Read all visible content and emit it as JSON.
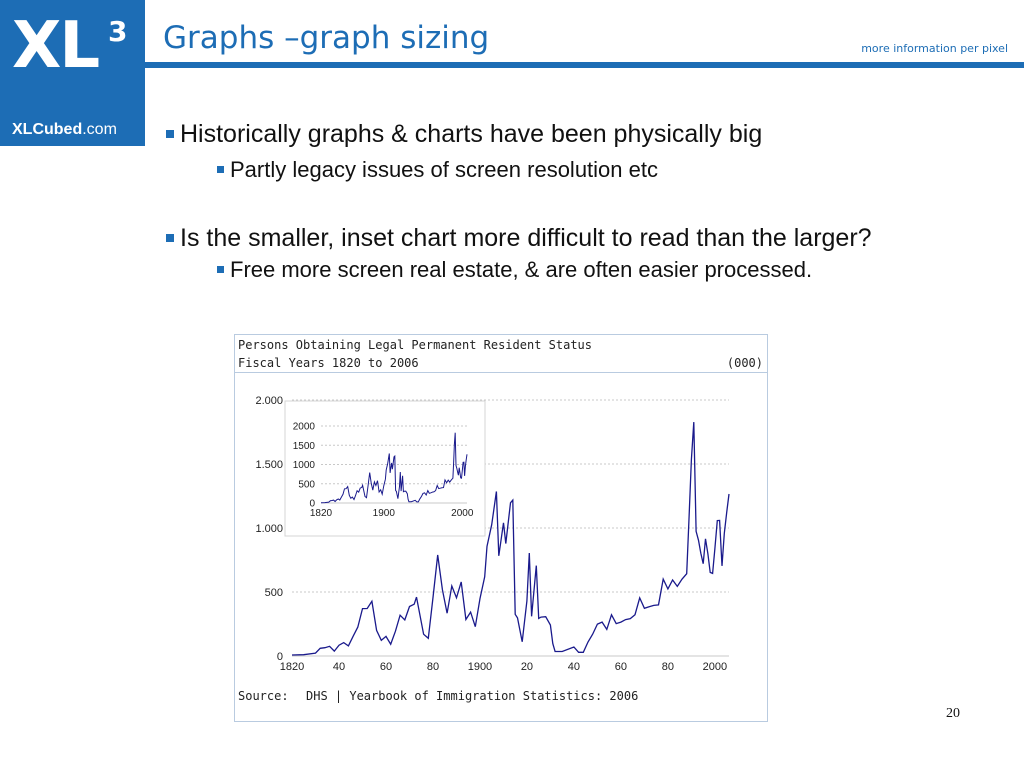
{
  "header": {
    "logo_main": "XL",
    "logo_sup": "3",
    "logo_url_bold": "XLCubed",
    "logo_url_rest": ".com",
    "title": "Graphs –graph sizing",
    "tagline": "more information per pixel"
  },
  "bullets": [
    {
      "level": 1,
      "text": "Historically graphs & charts have been physically big"
    },
    {
      "level": 2,
      "text": "Partly legacy issues of screen resolution etc"
    },
    {
      "level": 1,
      "text": "Is the smaller, inset chart more difficult to read than the larger?"
    },
    {
      "level": 2,
      "text": "Free more screen real estate, & are often easier processed."
    }
  ],
  "page_number": "20",
  "colors": {
    "brand": "#1d6db5",
    "line": "#1a1a8c",
    "grid": "#c8c8c8"
  },
  "chart_data": [
    {
      "type": "line",
      "title": "Persons Obtaining Legal Permanent Resident Status",
      "subtitle": "Fiscal Years 1820 to 2006",
      "unit": "(000)",
      "source_label": "Source:",
      "source": "DHS | Yearbook of Immigration Statistics: 2006",
      "xlim": [
        1820,
        2006
      ],
      "ylim": [
        0,
        2000
      ],
      "y_ticks": [
        0,
        500,
        1000,
        1500,
        2000
      ],
      "y_tick_labels": [
        "0",
        "500",
        "1.000",
        "1.500",
        "2.000"
      ],
      "x_ticks": [
        1820,
        1840,
        1860,
        1880,
        1900,
        1920,
        1940,
        1960,
        1980,
        2000
      ],
      "x_tick_labels": [
        "1820",
        "40",
        "60",
        "80",
        "1900",
        "20",
        "40",
        "60",
        "80",
        "2000"
      ],
      "grid": true,
      "series": [
        {
          "x": [
            1820,
            1825,
            1830,
            1832,
            1834,
            1836,
            1838,
            1840,
            1842,
            1844,
            1846,
            1848,
            1850,
            1852,
            1854,
            1856,
            1858,
            1860,
            1862,
            1864,
            1866,
            1868,
            1870,
            1872,
            1873,
            1876,
            1878,
            1880,
            1882,
            1884,
            1886,
            1888,
            1890,
            1892,
            1894,
            1896,
            1898,
            1900,
            1902,
            1903,
            1905,
            1907,
            1908,
            1910,
            1911,
            1913,
            1914,
            1915,
            1916,
            1918,
            1920,
            1921,
            1922,
            1924,
            1925,
            1926,
            1928,
            1930,
            1931,
            1932,
            1935,
            1940,
            1942,
            1944,
            1946,
            1948,
            1950,
            1952,
            1954,
            1956,
            1958,
            1960,
            1962,
            1964,
            1966,
            1968,
            1970,
            1972,
            1974,
            1976,
            1978,
            1980,
            1982,
            1984,
            1986,
            1988,
            1989,
            1990,
            1991,
            1992,
            1993,
            1994,
            1995,
            1996,
            1997,
            1998,
            1999,
            2000,
            2001,
            2002,
            2003,
            2004,
            2005,
            2006
          ],
          "y": [
            8,
            10,
            23,
            60,
            65,
            76,
            38,
            84,
            105,
            79,
            154,
            226,
            370,
            371,
            427,
            200,
            123,
            153,
            92,
            193,
            319,
            282,
            387,
            405,
            460,
            170,
            138,
            457,
            789,
            519,
            334,
            547,
            455,
            579,
            285,
            343,
            229,
            449,
            619,
            857,
            1026,
            1285,
            783,
            1041,
            878,
            1197,
            1218,
            326,
            298,
            111,
            430,
            805,
            310,
            706,
            294,
            304,
            307,
            242,
            97,
            35,
            35,
            70,
            29,
            29,
            109,
            171,
            249,
            265,
            208,
            322,
            253,
            265,
            284,
            292,
            323,
            454,
            373,
            385,
            395,
            399,
            601,
            524,
            594,
            544,
            600,
            643,
            1091,
            1536,
            1827,
            974,
            904,
            804,
            721,
            916,
            798,
            653,
            645,
            841,
            1058,
            1059,
            704,
            958,
            1122,
            1266
          ]
        }
      ]
    },
    {
      "type": "line",
      "title": "",
      "xlim": [
        1820,
        2006
      ],
      "ylim": [
        0,
        2000
      ],
      "y_ticks": [
        0,
        500,
        1000,
        1500,
        2000
      ],
      "y_tick_labels": [
        "0",
        "500",
        "1000",
        "1500",
        "2000"
      ],
      "x_ticks": [
        1820,
        1900,
        2000
      ],
      "x_tick_labels": [
        "1820",
        "1900",
        "2000"
      ],
      "grid": true,
      "note": "inset"
    }
  ]
}
